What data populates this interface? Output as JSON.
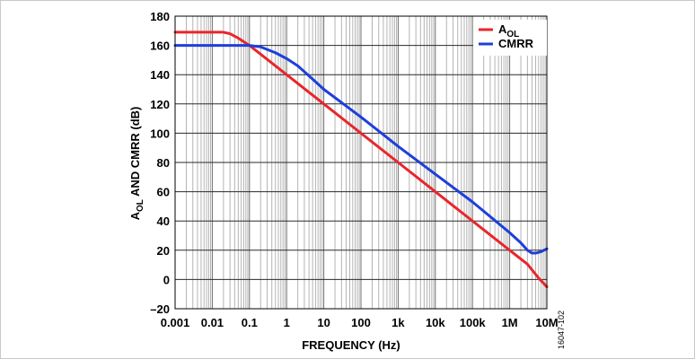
{
  "chart_data": {
    "type": "line",
    "xlabel": "FREQUENCY (Hz)",
    "ylabel": {
      "prefix": "A",
      "subscript": "OL",
      "rest": " AND CMRR (dB)"
    },
    "x_scale": "log",
    "xlim": [
      0.001,
      10000000
    ],
    "ylim": [
      -20,
      180
    ],
    "x_ticks": [
      {
        "value": 0.001,
        "label": "0.001"
      },
      {
        "value": 0.01,
        "label": "0.01"
      },
      {
        "value": 0.1,
        "label": "0.1"
      },
      {
        "value": 1,
        "label": "1"
      },
      {
        "value": 10,
        "label": "10"
      },
      {
        "value": 100,
        "label": "100"
      },
      {
        "value": 1000,
        "label": "1k"
      },
      {
        "value": 10000,
        "label": "10k"
      },
      {
        "value": 100000,
        "label": "100k"
      },
      {
        "value": 1000000,
        "label": "1M"
      },
      {
        "value": 10000000,
        "label": "10M"
      }
    ],
    "y_ticks": [
      {
        "value": -20,
        "label": "–20"
      },
      {
        "value": 0,
        "label": "0"
      },
      {
        "value": 20,
        "label": "20"
      },
      {
        "value": 40,
        "label": "40"
      },
      {
        "value": 60,
        "label": "60"
      },
      {
        "value": 80,
        "label": "80"
      },
      {
        "value": 100,
        "label": "100"
      },
      {
        "value": 120,
        "label": "120"
      },
      {
        "value": 140,
        "label": "140"
      },
      {
        "value": 160,
        "label": "160"
      },
      {
        "value": 180,
        "label": "180"
      }
    ],
    "grid": true,
    "legend_position": "top-right",
    "series": [
      {
        "legend_prefix": "A",
        "legend_subscript": "OL",
        "color": "#e8262b",
        "points": [
          [
            0.001,
            169
          ],
          [
            0.01,
            169
          ],
          [
            0.02,
            169
          ],
          [
            0.03,
            168
          ],
          [
            0.05,
            165
          ],
          [
            0.1,
            160
          ],
          [
            1,
            140
          ],
          [
            10,
            120
          ],
          [
            100,
            100
          ],
          [
            1000,
            80
          ],
          [
            10000,
            60
          ],
          [
            100000,
            40
          ],
          [
            1000000,
            20
          ],
          [
            3000000,
            10.5
          ],
          [
            6000000,
            1
          ],
          [
            10000000,
            -5
          ]
        ]
      },
      {
        "legend_prefix": "CMRR",
        "legend_subscript": "",
        "color": "#1d3fdb",
        "points": [
          [
            0.001,
            160
          ],
          [
            0.1,
            160
          ],
          [
            0.2,
            159
          ],
          [
            0.5,
            155
          ],
          [
            1,
            151
          ],
          [
            2,
            146
          ],
          [
            5,
            137
          ],
          [
            10,
            130
          ],
          [
            100,
            111
          ],
          [
            1000,
            91
          ],
          [
            10000,
            72
          ],
          [
            100000,
            53
          ],
          [
            1000000,
            32
          ],
          [
            2000000,
            25
          ],
          [
            3000000,
            20
          ],
          [
            4000000,
            18
          ],
          [
            5000000,
            18
          ],
          [
            7000000,
            19
          ],
          [
            10000000,
            21
          ]
        ]
      }
    ]
  },
  "figure_id": "16047-102"
}
